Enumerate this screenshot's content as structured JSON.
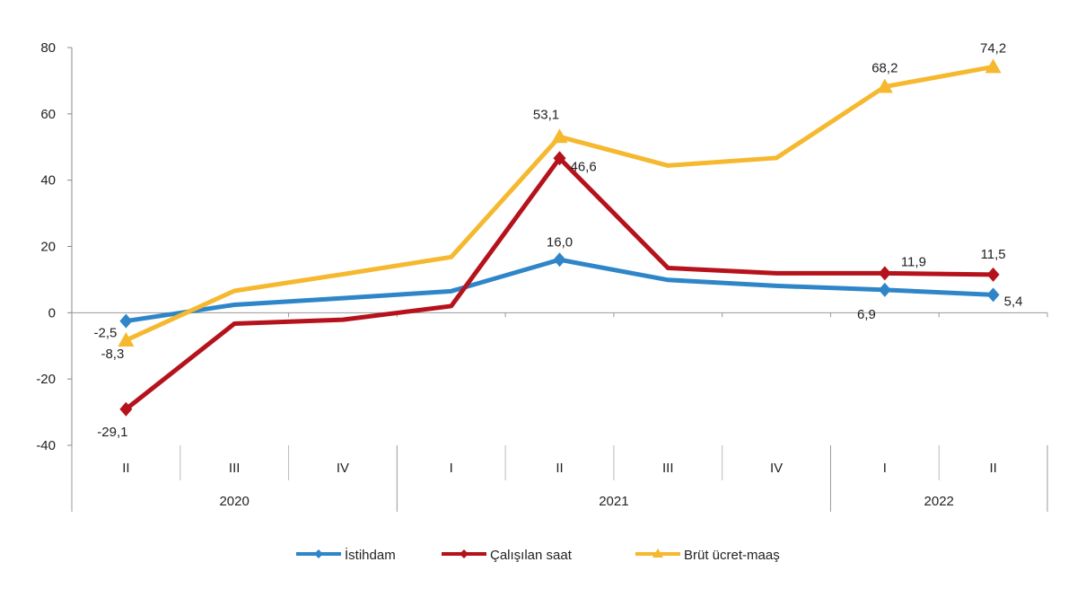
{
  "chart_data": {
    "type": "line",
    "title": "",
    "xlabel": "",
    "ylabel": "",
    "ylim": [
      -40,
      80
    ],
    "yticks": [
      -40,
      -20,
      0,
      20,
      40,
      60,
      80
    ],
    "ytick_labels": [
      "-40",
      "-20",
      "0",
      "20",
      "40",
      "60",
      "80"
    ],
    "categories": [
      "II",
      "III",
      "IV",
      "I",
      "II",
      "III",
      "IV",
      "I",
      "II"
    ],
    "years": [
      {
        "label": "2020",
        "span": 3
      },
      {
        "label": "2021",
        "span": 4
      },
      {
        "label": "2022",
        "span": 2
      }
    ],
    "legend_position": "bottom",
    "series": [
      {
        "name": "İstihdam",
        "color": "#2E86C8",
        "marker": "diamond",
        "values": [
          -2.5,
          2.4,
          4.4,
          6.5,
          16.0,
          9.9,
          8.1,
          6.9,
          5.4
        ],
        "labels": [
          "-2,5",
          null,
          null,
          null,
          "16,0",
          null,
          null,
          "6,9",
          "5,4"
        ]
      },
      {
        "name": "Çalışılan saat",
        "color": "#B5121B",
        "marker": "diamond",
        "values": [
          -29.1,
          -3.3,
          -2.1,
          2.0,
          46.6,
          13.5,
          11.9,
          11.9,
          11.5
        ],
        "labels": [
          "-29,1",
          null,
          null,
          null,
          "46,6",
          null,
          null,
          "11,9",
          "11,5"
        ]
      },
      {
        "name": "Brüt ücret-maaş",
        "color": "#F5B82E",
        "marker": "triangle",
        "values": [
          -8.3,
          6.6,
          11.6,
          16.8,
          53.1,
          44.4,
          46.7,
          68.2,
          74.2
        ],
        "labels": [
          "-8,3",
          null,
          null,
          null,
          "53,1",
          null,
          null,
          "68,2",
          "74,2"
        ]
      }
    ]
  }
}
